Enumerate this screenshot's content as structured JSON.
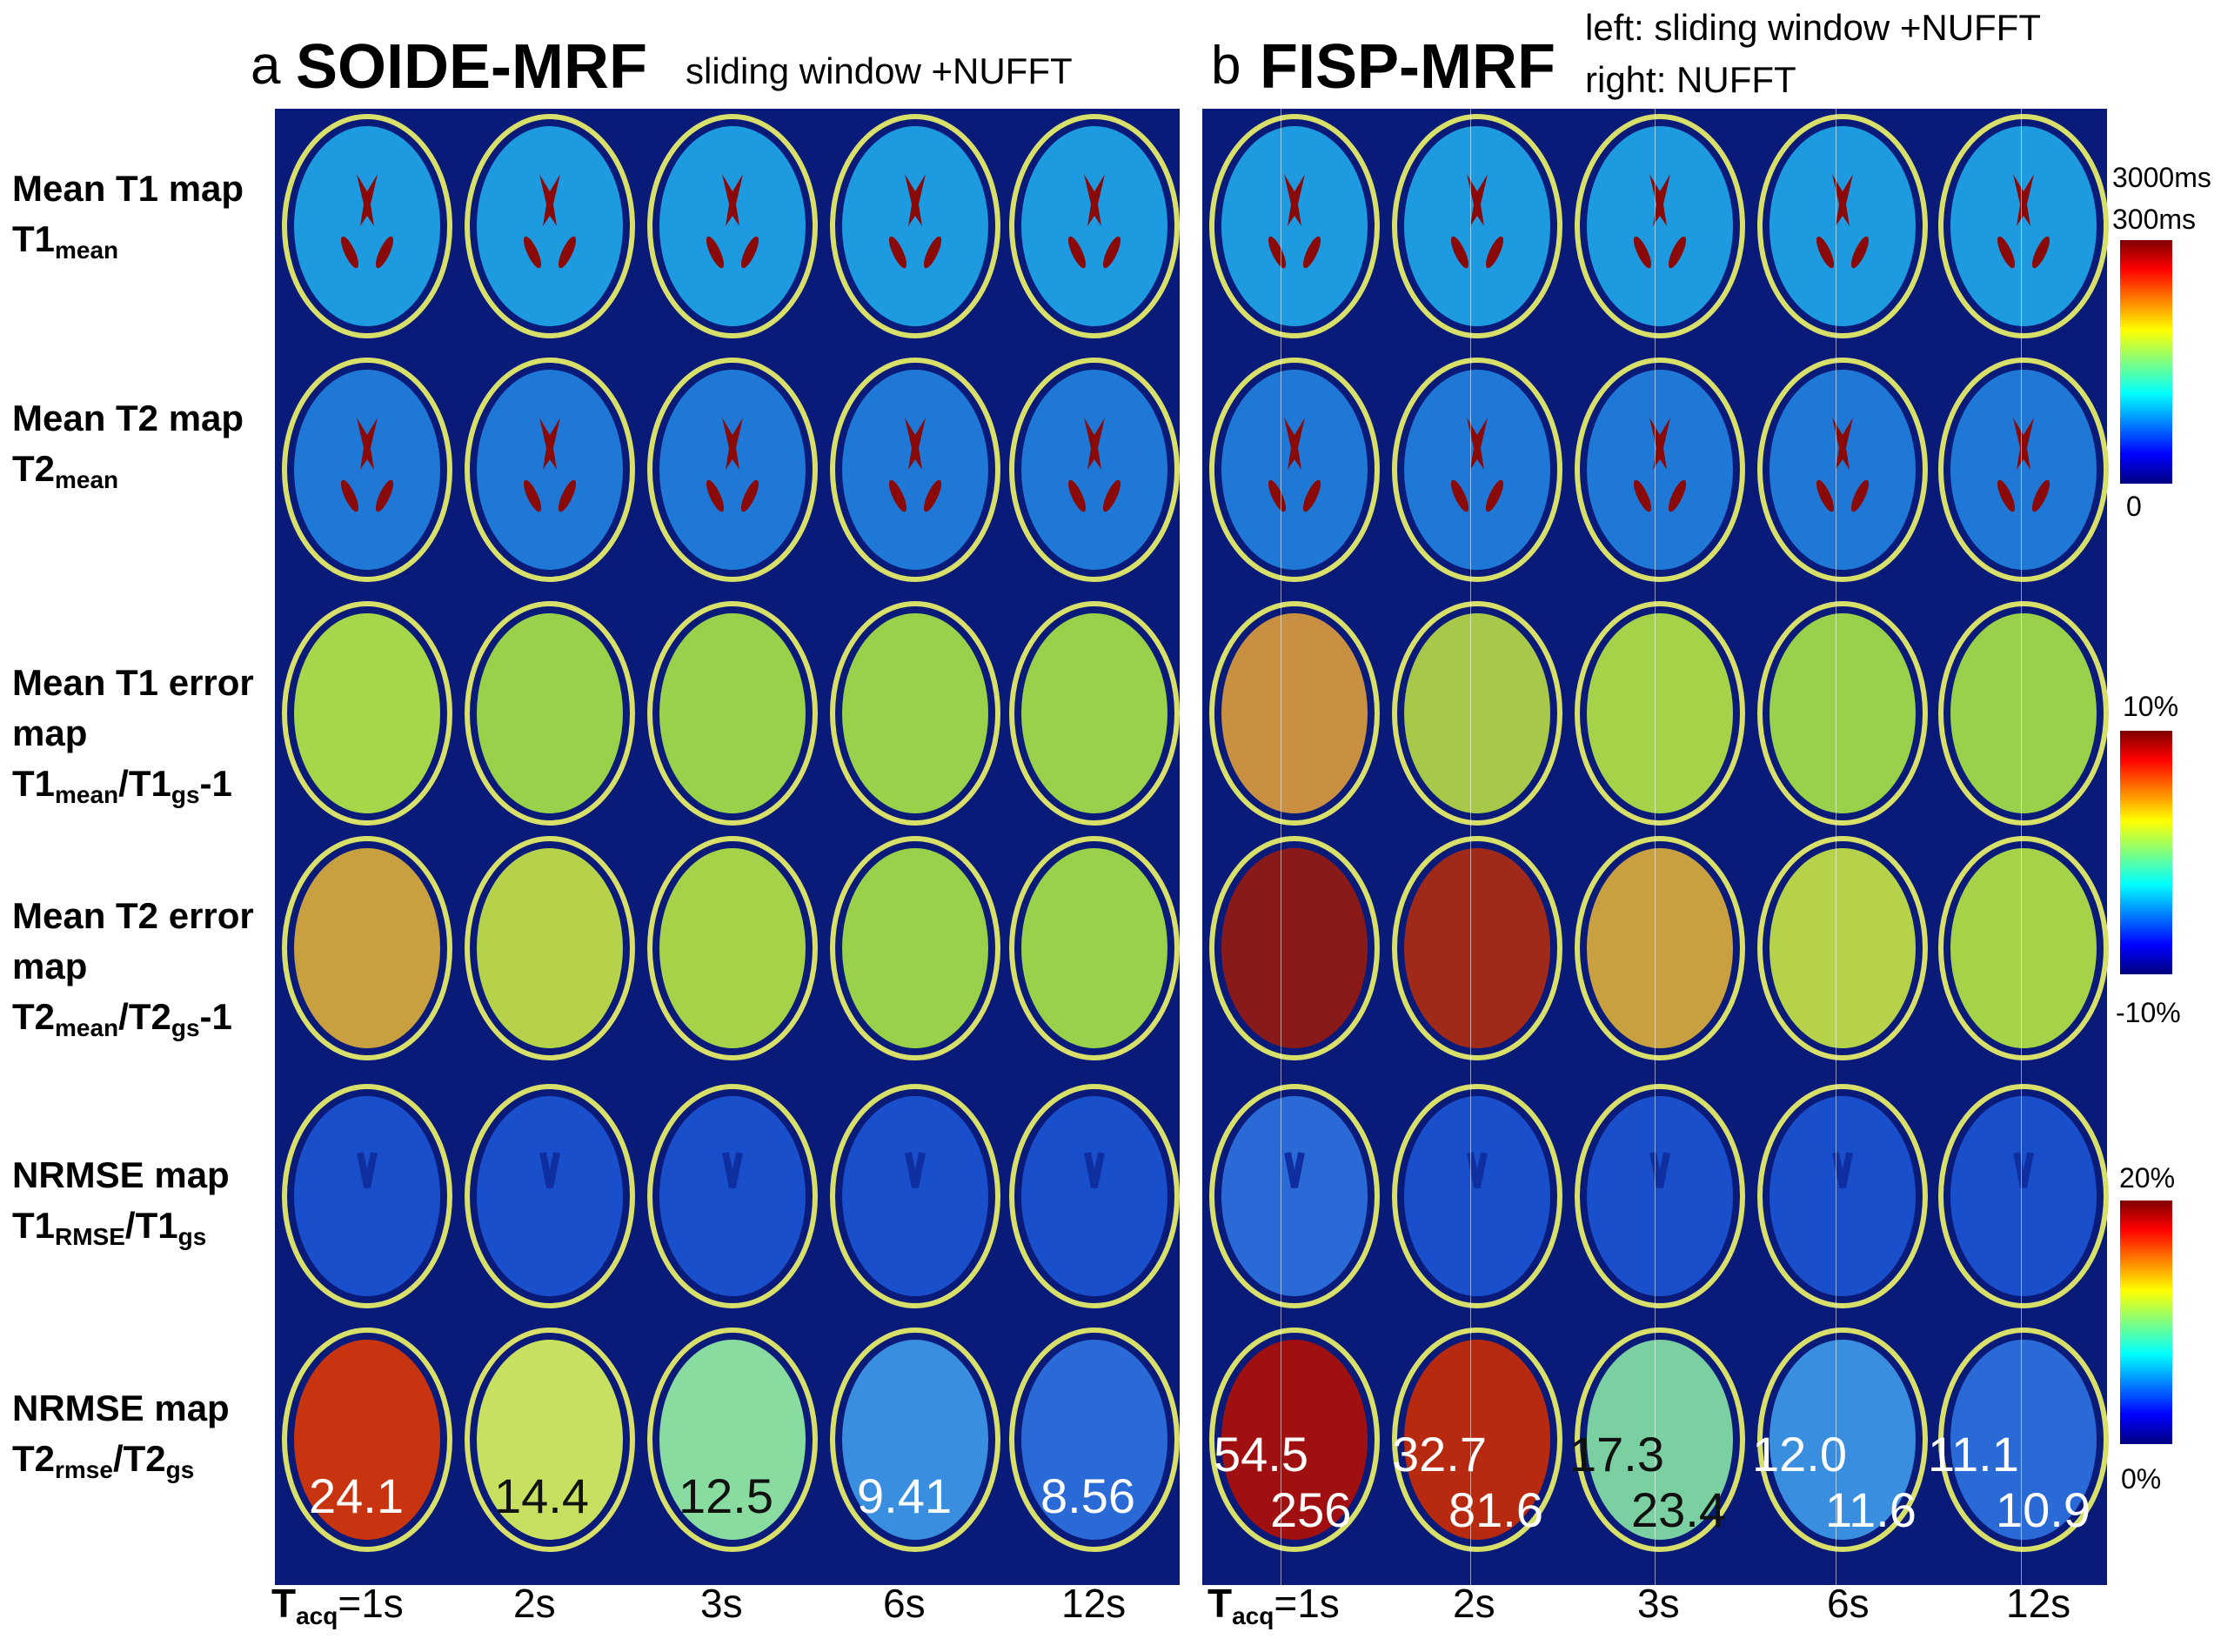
{
  "panel_a": {
    "letter": "a",
    "title": "SOIDE-MRF",
    "note": "sliding window +NUFFT"
  },
  "panel_b": {
    "letter": "b",
    "title": "FISP-MRF",
    "note_line1": "left: sliding window +NUFFT",
    "note_line2": "right: NUFFT"
  },
  "row_labels": [
    {
      "line1": "Mean T1 map",
      "line2_main": "T1",
      "line2_sub": "mean"
    },
    {
      "line1": "Mean T2 map",
      "line2_main": "T2",
      "line2_sub": "mean"
    },
    {
      "line1": "Mean T1 error",
      "line1b": "map",
      "l3_a": "T1",
      "l3_sub1": "mean",
      "l3_b": "/T1",
      "l3_sub2": "gs",
      "l3_c": "-1"
    },
    {
      "line1": "Mean T2 error",
      "line1b": "map",
      "l3_a": "T2",
      "l3_sub1": "mean",
      "l3_b": "/T2",
      "l3_sub2": "gs",
      "l3_c": "-1"
    },
    {
      "line1": "NRMSE map",
      "l2_a": "T1",
      "l2_sub1": "RMSE",
      "l2_b": "/T1",
      "l2_sub2": "gs"
    },
    {
      "line1": "NRMSE map",
      "l2_a": "T2",
      "l2_sub1": "rmse",
      "l2_b": "/T2",
      "l2_sub2": "gs"
    }
  ],
  "colorbars": {
    "cb1": {
      "top_a": "3000ms",
      "top_b": "300ms",
      "bottom": "0"
    },
    "cb2": {
      "top": "10%",
      "bottom": "-10%"
    },
    "cb3": {
      "top": "20%",
      "bottom": "0%"
    }
  },
  "nrmse_values_a": [
    "24.1",
    "14.4",
    "12.5",
    "9.41",
    "8.56"
  ],
  "nrmse_values_b_left": [
    "54.5",
    "32.7",
    "17.3",
    "12.0",
    "11.1"
  ],
  "nrmse_values_b_right": [
    "256",
    "81.6",
    "23.4",
    "11.6",
    "10.9"
  ],
  "tacq": {
    "a": {
      "prefix_main": "T",
      "prefix_sub": "acq",
      "first": "=1s",
      "rest": [
        "2s",
        "3s",
        "6s",
        "12s"
      ]
    },
    "b": {
      "prefix_main": "T",
      "prefix_sub": "acq",
      "first": "=1s",
      "rest": [
        "2s",
        "3s",
        "6s",
        "12s"
      ]
    }
  },
  "colors": {
    "background": "#0a1a78",
    "t1_map_fill": "#1e9be0",
    "t2_map_fill": "#1f78d6",
    "err_fill": "#9ad14a",
    "nrmse1_fill": "#1a4fcc",
    "ventricle": "#8a0a0a",
    "skull_ring": "#d8e06a"
  }
}
